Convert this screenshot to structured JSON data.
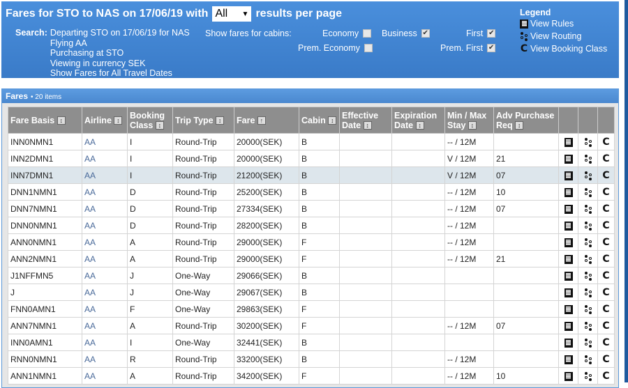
{
  "header": {
    "title_prefix": "Fares for STO to NAS on 17/06/19 with",
    "per_page": "All",
    "title_suffix": "results per page",
    "search_label": "Search:",
    "search_lines": [
      "Departing STO on 17/06/19 for NAS",
      "Flying AA",
      "Purchasing at STO",
      "Viewing in currency SEK",
      "Show Fares for All Travel Dates"
    ],
    "cabins_label": "Show fares for cabins:",
    "cabins": [
      {
        "label": "Economy",
        "checked": false
      },
      {
        "label": "Business",
        "checked": true
      },
      {
        "label": "First",
        "checked": true
      },
      {
        "label": "Prem. Economy",
        "checked": false
      },
      {
        "label": "Prem. First",
        "checked": true
      }
    ]
  },
  "legend": {
    "title": "Legend",
    "rules": "View Rules",
    "routing": "View Routing",
    "booking": "View Booking Class"
  },
  "fares": {
    "title": "Fares",
    "count": "• 20 items",
    "columns": [
      "Fare Basis",
      "Airline",
      "Booking Class",
      "Trip Type",
      "Fare",
      "Cabin",
      "Effective Date",
      "Expiration Date",
      "Min / Max Stay",
      "Adv Purchase Req"
    ],
    "rows": [
      [
        "INN0NMN1",
        "AA",
        "I",
        "Round-Trip",
        "20000(SEK)",
        "B",
        "",
        "",
        "-- / 12M",
        ""
      ],
      [
        "INN2DMN1",
        "AA",
        "I",
        "Round-Trip",
        "20000(SEK)",
        "B",
        "",
        "",
        "V / 12M",
        "21"
      ],
      [
        "INN7DMN1",
        "AA",
        "I",
        "Round-Trip",
        "21200(SEK)",
        "B",
        "",
        "",
        "V / 12M",
        "07"
      ],
      [
        "DNN1NMN1",
        "AA",
        "D",
        "Round-Trip",
        "25200(SEK)",
        "B",
        "",
        "",
        "-- / 12M",
        "10"
      ],
      [
        "DNN7NMN1",
        "AA",
        "D",
        "Round-Trip",
        "27334(SEK)",
        "B",
        "",
        "",
        "-- / 12M",
        "07"
      ],
      [
        "DNN0NMN1",
        "AA",
        "D",
        "Round-Trip",
        "28200(SEK)",
        "B",
        "",
        "",
        "-- / 12M",
        ""
      ],
      [
        "ANN0NMN1",
        "AA",
        "A",
        "Round-Trip",
        "29000(SEK)",
        "F",
        "",
        "",
        "-- / 12M",
        ""
      ],
      [
        "ANN2NMN1",
        "AA",
        "A",
        "Round-Trip",
        "29000(SEK)",
        "F",
        "",
        "",
        "-- / 12M",
        "21"
      ],
      [
        "J1NFFMN5",
        "AA",
        "J",
        "One-Way",
        "29066(SEK)",
        "B",
        "",
        "",
        "",
        ""
      ],
      [
        "J",
        "AA",
        "J",
        "One-Way",
        "29067(SEK)",
        "B",
        "",
        "",
        "",
        ""
      ],
      [
        "FNN0AMN1",
        "AA",
        "F",
        "One-Way",
        "29863(SEK)",
        "F",
        "",
        "",
        "",
        ""
      ],
      [
        "ANN7NMN1",
        "AA",
        "A",
        "Round-Trip",
        "30200(SEK)",
        "F",
        "",
        "",
        "-- / 12M",
        "07"
      ],
      [
        "INN0AMN1",
        "AA",
        "I",
        "One-Way",
        "32441(SEK)",
        "B",
        "",
        "",
        "",
        ""
      ],
      [
        "RNN0NMN1",
        "AA",
        "R",
        "Round-Trip",
        "33200(SEK)",
        "B",
        "",
        "",
        "-- / 12M",
        ""
      ],
      [
        "ANN1NMN1",
        "AA",
        "A",
        "Round-Trip",
        "34200(SEK)",
        "F",
        "",
        "",
        "-- / 12M",
        "10"
      ]
    ]
  }
}
